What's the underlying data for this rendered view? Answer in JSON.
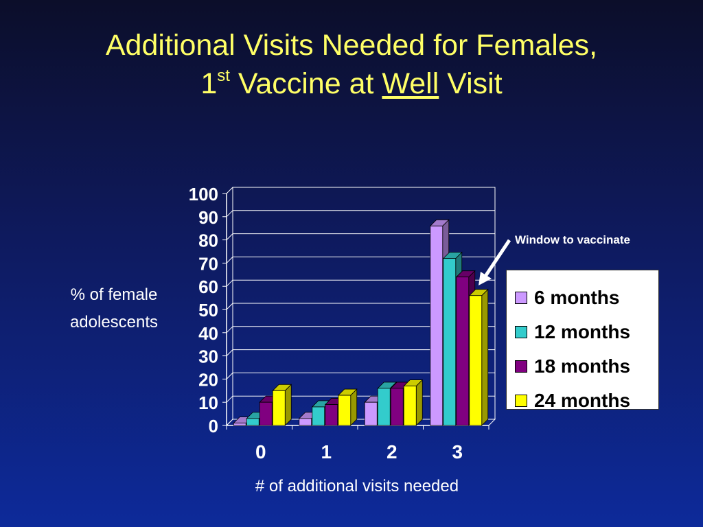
{
  "title": {
    "line1": "Additional Visits Needed for Females,",
    "line2_pre": "1",
    "line2_sup": "st",
    "line2_mid": " Vaccine at ",
    "line2_under": "Well",
    "line2_post": " Visit"
  },
  "annotation": "Window to vaccinate",
  "colors": {
    "6 months": "#cc99ff",
    "12 months": "#33cccc",
    "18 months": "#800080",
    "24 months": "#ffff00"
  },
  "chart_data": {
    "type": "bar",
    "categories": [
      "0",
      "1",
      "2",
      "3"
    ],
    "series": [
      {
        "name": "6 months",
        "values": [
          1,
          3,
          10,
          86
        ]
      },
      {
        "name": "12 months",
        "values": [
          3,
          8,
          16,
          72
        ]
      },
      {
        "name": "18 months",
        "values": [
          10,
          9,
          16,
          64
        ]
      },
      {
        "name": "24 months",
        "values": [
          15,
          13,
          17,
          56
        ]
      }
    ],
    "xlabel": "# of additional visits needed",
    "ylabel_line1": "% of female",
    "ylabel_line2": "adolescents",
    "ylim": [
      0,
      100
    ],
    "yticks": [
      "0",
      "10",
      "20",
      "30",
      "40",
      "50",
      "60",
      "70",
      "80",
      "90",
      "100"
    ],
    "grid": true,
    "legend_position": "right"
  }
}
